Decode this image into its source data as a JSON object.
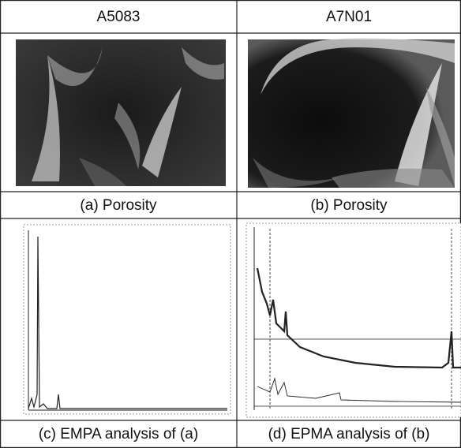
{
  "table": {
    "headers": [
      "A5083",
      "A7N01"
    ],
    "captions": [
      [
        "(a) Porosity",
        "(b) Porosity"
      ],
      [
        "(c) EMPA analysis of (a)",
        "(d) EPMA analysis of (b)"
      ]
    ]
  }
}
